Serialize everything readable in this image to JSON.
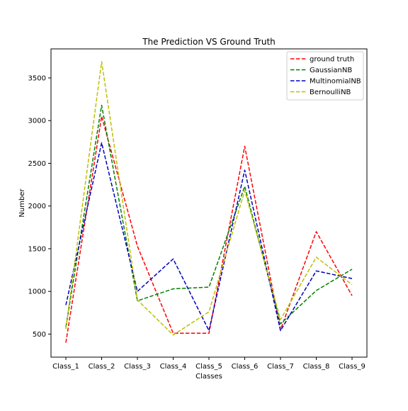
{
  "chart_data": {
    "type": "line",
    "title": "The Prediction VS Ground Truth",
    "xlabel": "Classes",
    "ylabel": "Number",
    "categories": [
      "Class_1",
      "Class_2",
      "Class_3",
      "Class_4",
      "Class_5",
      "Class_6",
      "Class_7",
      "Class_8",
      "Class_9"
    ],
    "ylim": [
      230,
      3840
    ],
    "yticks": [
      500,
      1000,
      1500,
      2000,
      2500,
      3000,
      3500
    ],
    "grid": false,
    "legend_position": "top-right",
    "line_style": "dashed",
    "series": [
      {
        "name": "ground truth",
        "color": "#ff0000",
        "values": [
          400,
          3050,
          1530,
          510,
          510,
          2700,
          550,
          1700,
          950
        ]
      },
      {
        "name": "GaussianNB",
        "color": "#008000",
        "values": [
          580,
          3180,
          890,
          1030,
          1050,
          2230,
          620,
          1010,
          1260
        ]
      },
      {
        "name": "MultinomialNB",
        "color": "#0000bf",
        "values": [
          840,
          2740,
          1000,
          1380,
          540,
          2420,
          540,
          1240,
          1150
        ]
      },
      {
        "name": "BernoulliNB",
        "color": "#bfbf00",
        "values": [
          560,
          3690,
          900,
          490,
          760,
          2180,
          670,
          1400,
          1080
        ]
      }
    ]
  }
}
